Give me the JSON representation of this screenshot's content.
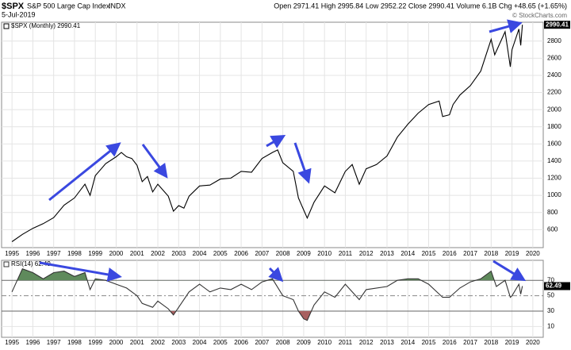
{
  "header": {
    "symbol": "$SPX",
    "title": "S&P 500 Large Cap Index",
    "exchange": "INDX",
    "date": "5-Jul-2019",
    "quote": "Open 2971.41  High 2995.84  Low 2952.22  Close 2990.41  Volume 6.1B  Chg +48.65 (+1.65%)",
    "credit": "© StockCharts.com"
  },
  "chart_data": [
    {
      "type": "line",
      "xlim": [
        1994.5,
        2020.5
      ],
      "ylim": [
        390,
        3020
      ],
      "xticks": [
        1995,
        1996,
        1997,
        1998,
        1999,
        2000,
        2001,
        2002,
        2003,
        2004,
        2005,
        2006,
        2007,
        2008,
        2009,
        2010,
        2011,
        2012,
        2013,
        2014,
        2015,
        2016,
        2017,
        2018,
        2019,
        2020
      ],
      "yticks": [
        600,
        800,
        1000,
        1200,
        1400,
        1600,
        1800,
        2000,
        2200,
        2400,
        2600,
        2800
      ],
      "grid": true,
      "series": [
        {
          "name": "$SPX (Monthly) 2990.41",
          "color": "#000000",
          "x": [
            1995.0,
            1995.5,
            1996.0,
            1996.5,
            1997.0,
            1997.5,
            1998.0,
            1998.5,
            1998.75,
            1999.0,
            1999.5,
            2000.0,
            2000.25,
            2000.5,
            2000.75,
            2001.0,
            2001.25,
            2001.5,
            2001.75,
            2002.0,
            2002.5,
            2002.75,
            2003.0,
            2003.25,
            2003.5,
            2004.0,
            2004.5,
            2005.0,
            2005.5,
            2006.0,
            2006.5,
            2007.0,
            2007.5,
            2007.75,
            2008.0,
            2008.5,
            2008.75,
            2009.0,
            2009.17,
            2009.5,
            2010.0,
            2010.5,
            2011.0,
            2011.33,
            2011.67,
            2012.0,
            2012.5,
            2013.0,
            2013.5,
            2014.0,
            2014.5,
            2015.0,
            2015.5,
            2015.67,
            2016.0,
            2016.17,
            2016.5,
            2017.0,
            2017.5,
            2018.0,
            2018.17,
            2018.67,
            2018.92,
            2019.0,
            2019.33,
            2019.42,
            2019.5
          ],
          "values": [
            459,
            545,
            615,
            670,
            740,
            885,
            970,
            1130,
            1000,
            1230,
            1370,
            1450,
            1500,
            1450,
            1430,
            1350,
            1160,
            1220,
            1040,
            1130,
            990,
            815,
            880,
            850,
            990,
            1110,
            1120,
            1190,
            1200,
            1280,
            1270,
            1430,
            1500,
            1530,
            1380,
            1280,
            970,
            830,
            735,
            920,
            1110,
            1030,
            1280,
            1360,
            1130,
            1310,
            1360,
            1460,
            1680,
            1830,
            1960,
            2060,
            2100,
            1920,
            1940,
            2060,
            2170,
            2280,
            2450,
            2820,
            2640,
            2910,
            2500,
            2700,
            2940,
            2750,
            2990.41
          ]
        }
      ]
    },
    {
      "type": "line",
      "xlim": [
        1994.5,
        2020.5
      ],
      "ylim": [
        -4,
        96
      ],
      "xticks": [
        1995,
        1996,
        1997,
        1998,
        1999,
        2000,
        2001,
        2002,
        2003,
        2004,
        2005,
        2006,
        2007,
        2008,
        2009,
        2010,
        2011,
        2012,
        2013,
        2014,
        2015,
        2016,
        2017,
        2018,
        2019,
        2020
      ],
      "yticks": [
        10,
        30,
        50,
        70
      ],
      "bands": [
        30,
        70
      ],
      "band_colors": [
        "#a86060",
        "#5f8a5c"
      ],
      "series": [
        {
          "name": "RSI(14) 62.49",
          "color": "#333333",
          "x": [
            1995.0,
            1995.5,
            1996.0,
            1996.5,
            1997.0,
            1997.5,
            1998.0,
            1998.5,
            1998.75,
            1999.0,
            1999.5,
            2000.0,
            2000.5,
            2001.0,
            2001.25,
            2001.75,
            2002.0,
            2002.5,
            2002.75,
            2003.0,
            2003.5,
            2004.0,
            2004.5,
            2005.0,
            2005.5,
            2006.0,
            2006.5,
            2007.0,
            2007.5,
            2008.0,
            2008.5,
            2008.75,
            2009.0,
            2009.17,
            2009.5,
            2010.0,
            2010.5,
            2011.0,
            2011.67,
            2012.0,
            2013.0,
            2013.5,
            2014.0,
            2014.5,
            2015.0,
            2015.67,
            2016.0,
            2016.5,
            2017.0,
            2017.5,
            2018.0,
            2018.25,
            2018.67,
            2018.92,
            2019.0,
            2019.33,
            2019.42,
            2019.5
          ],
          "values": [
            55,
            85,
            80,
            72,
            80,
            82,
            75,
            80,
            58,
            72,
            70,
            65,
            60,
            50,
            40,
            35,
            43,
            33,
            25,
            35,
            55,
            65,
            55,
            60,
            58,
            65,
            58,
            68,
            72,
            50,
            45,
            30,
            20,
            18,
            38,
            55,
            48,
            65,
            45,
            58,
            62,
            70,
            72,
            72,
            65,
            48,
            48,
            60,
            68,
            72,
            82,
            62,
            70,
            48,
            50,
            65,
            52,
            62.49
          ]
        }
      ]
    }
  ]
}
